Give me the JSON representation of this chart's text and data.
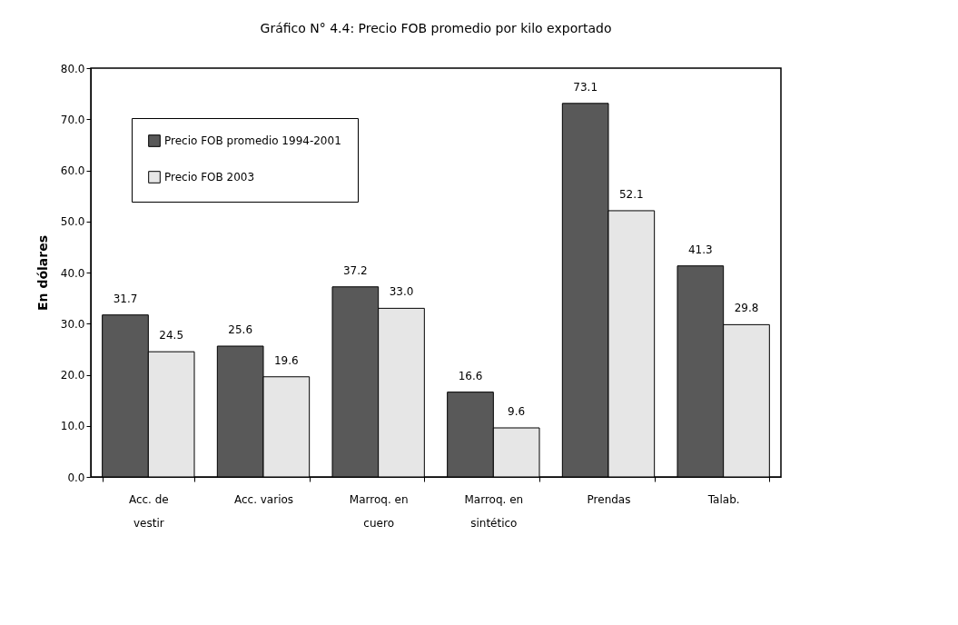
{
  "chart_data": {
    "type": "bar",
    "title": "Gráfico N° 4.4: Precio FOB promedio por kilo exportado",
    "ylabel": "En dólares",
    "categories": [
      "Acc. de vestir",
      "Acc. varios",
      "Marroq. en cuero",
      "Marroq. en sintético",
      "Prendas",
      "Talab."
    ],
    "series": [
      {
        "name": "Precio FOB promedio 1994-2001",
        "color": "#595959",
        "values": [
          31.7,
          25.6,
          37.2,
          16.6,
          73.1,
          41.3
        ],
        "value_labels": [
          "31.7",
          "25.6",
          "37.2",
          "16.6",
          "73.1",
          "41.3"
        ]
      },
      {
        "name": "Precio FOB 2003",
        "color": "#e6e6e6",
        "values": [
          24.5,
          19.6,
          33.0,
          9.6,
          52.1,
          29.8
        ],
        "value_labels": [
          "24.5",
          "19.6",
          "33.0",
          "9.6",
          "52.1",
          "29.8"
        ]
      }
    ],
    "ylim": [
      0,
      80
    ],
    "yticks": [
      {
        "value": 0,
        "label": "0.0"
      },
      {
        "value": 10,
        "label": "10.0"
      },
      {
        "value": 20,
        "label": "20.0"
      },
      {
        "value": 30,
        "label": "30.0"
      },
      {
        "value": 40,
        "label": "40.0"
      },
      {
        "value": 50,
        "label": "50.0"
      },
      {
        "value": 60,
        "label": "60.0"
      },
      {
        "value": 70,
        "label": "70.0"
      },
      {
        "value": 80,
        "label": "80.0"
      }
    ],
    "grid": false,
    "legend": "top left"
  }
}
